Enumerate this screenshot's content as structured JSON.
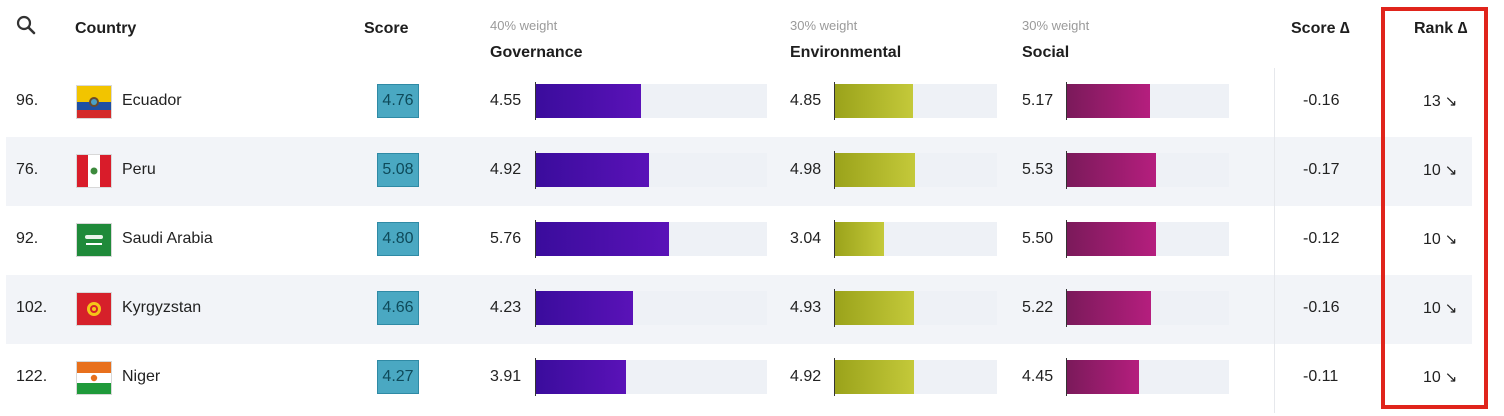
{
  "header": {
    "country": "Country",
    "score": "Score",
    "governance": {
      "weight": "40% weight",
      "label": "Governance"
    },
    "environmental": {
      "weight": "30% weight",
      "label": "Environmental"
    },
    "social": {
      "weight": "30% weight",
      "label": "Social"
    },
    "score_delta": "Score ∆",
    "rank_delta": "Rank ∆"
  },
  "colors": {
    "score_badge": "#4aa8c2",
    "governance": "#4a0fae",
    "environmental": "#b4b92c",
    "social": "#9b1c6e",
    "highlight": "#e0241b"
  },
  "bar_scale_max": 10,
  "rows": [
    {
      "rank": "96.",
      "country": "Ecuador",
      "flag": "ecuador-flag-icon",
      "score": "4.76",
      "governance": "4.55",
      "environmental": "4.85",
      "social": "5.17",
      "score_delta": "-0.16",
      "rank_delta": "13",
      "rank_arrow": "↘"
    },
    {
      "rank": "76.",
      "country": "Peru",
      "flag": "peru-flag-icon",
      "score": "5.08",
      "governance": "4.92",
      "environmental": "4.98",
      "social": "5.53",
      "score_delta": "-0.17",
      "rank_delta": "10",
      "rank_arrow": "↘"
    },
    {
      "rank": "92.",
      "country": "Saudi Arabia",
      "flag": "saudi-arabia-flag-icon",
      "score": "4.80",
      "governance": "5.76",
      "environmental": "3.04",
      "social": "5.50",
      "score_delta": "-0.12",
      "rank_delta": "10",
      "rank_arrow": "↘"
    },
    {
      "rank": "102.",
      "country": "Kyrgyzstan",
      "flag": "kyrgyzstan-flag-icon",
      "score": "4.66",
      "governance": "4.23",
      "environmental": "4.93",
      "social": "5.22",
      "score_delta": "-0.16",
      "rank_delta": "10",
      "rank_arrow": "↘"
    },
    {
      "rank": "122.",
      "country": "Niger",
      "flag": "niger-flag-icon",
      "score": "4.27",
      "governance": "3.91",
      "environmental": "4.92",
      "social": "4.45",
      "score_delta": "-0.11",
      "rank_delta": "10",
      "rank_arrow": "↘"
    }
  ]
}
